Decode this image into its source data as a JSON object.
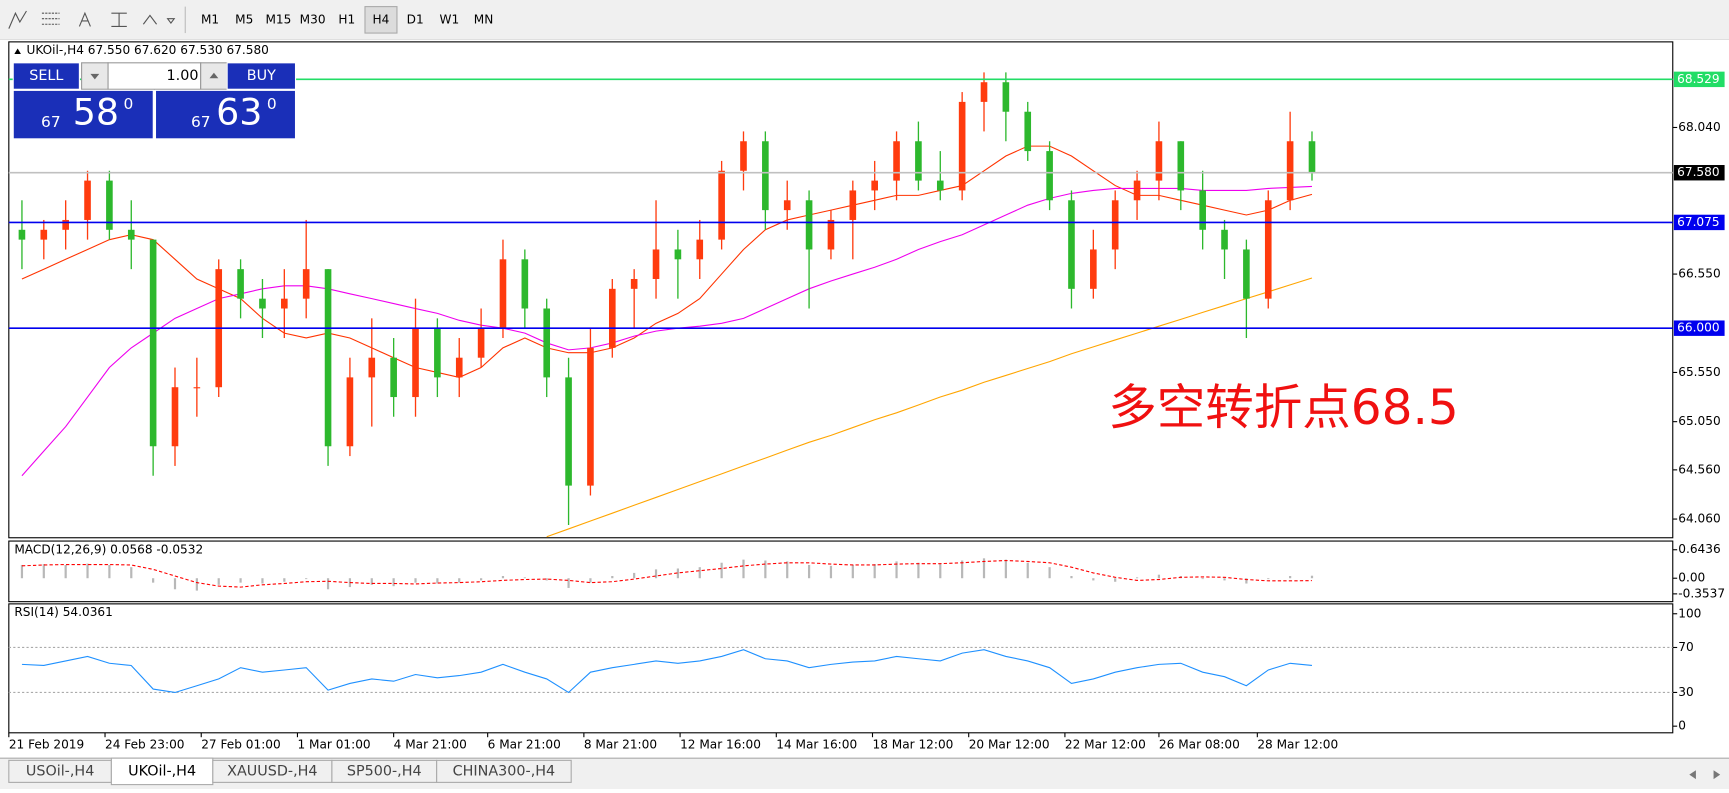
{
  "toolbar": {
    "timeframes": [
      "M1",
      "M5",
      "M15",
      "M30",
      "H1",
      "H4",
      "D1",
      "W1",
      "MN"
    ],
    "active": 5
  },
  "trade_panel": {
    "sell": "SELL",
    "buy": "BUY",
    "lots": "1.00",
    "bid": {
      "big": "67",
      "pips": "58",
      "point": "0"
    },
    "ask": {
      "big": "67",
      "pips": "63",
      "point": "0"
    }
  },
  "tabs": {
    "items": [
      "USOil-,H4",
      "UKOil-,H4",
      "XAUUSD-,H4",
      "SP500-,H4",
      "CHINA300-,H4"
    ],
    "active": 1
  },
  "chart_data": [
    {
      "type": "candlestick",
      "title": "UKOil-,H4  67.550 67.620 67.530 67.580",
      "annotation": "多空转折点68.5",
      "up_color": "#ff3b0e",
      "down_color": "#2db82d",
      "xlim": [
        -0.6,
        75.5
      ],
      "ylim": [
        63.87,
        68.91
      ],
      "xticks": [
        {
          "value": -0.6,
          "label": "21 Feb 2019"
        },
        {
          "value": 3.8,
          "label": "24 Feb 23:00"
        },
        {
          "value": 8.2,
          "label": "27 Feb 01:00"
        },
        {
          "value": 12.6,
          "label": "1 Mar 01:00"
        },
        {
          "value": 17.0,
          "label": "4 Mar 21:00"
        },
        {
          "value": 21.3,
          "label": "6 Mar 21:00"
        },
        {
          "value": 25.7,
          "label": "8 Mar 21:00"
        },
        {
          "value": 30.1,
          "label": "12 Mar 16:00"
        },
        {
          "value": 34.5,
          "label": "14 Mar 16:00"
        },
        {
          "value": 38.9,
          "label": "18 Mar 12:00"
        },
        {
          "value": 43.3,
          "label": "20 Mar 12:00"
        },
        {
          "value": 47.7,
          "label": "22 Mar 12:00"
        },
        {
          "value": 52.0,
          "label": "26 Mar 08:00"
        },
        {
          "value": 56.5,
          "label": "28 Mar 12:00"
        }
      ],
      "yticks": [
        {
          "value": 64.06,
          "label": "64.060"
        },
        {
          "value": 64.56,
          "label": "64.560"
        },
        {
          "value": 65.05,
          "label": "65.050"
        },
        {
          "value": 65.55,
          "label": "65.550"
        },
        {
          "value": 66.55,
          "label": "66.550"
        },
        {
          "value": 68.04,
          "label": "68.040"
        }
      ],
      "hlines": [
        {
          "value": 68.529,
          "label": "68.529",
          "color": "#22dd66"
        },
        {
          "value": 67.58,
          "label": "67.580",
          "color": "#c0c0c0",
          "label_color": "#000000"
        },
        {
          "value": 67.075,
          "label": "67.075",
          "color": "#0000ee"
        },
        {
          "value": 66.0,
          "label": "66.000",
          "color": "#0000ee"
        }
      ],
      "open": [
        67.0,
        66.9,
        67.0,
        67.1,
        67.5,
        67.0,
        66.9,
        64.8,
        65.4,
        65.4,
        66.6,
        66.3,
        66.2,
        66.3,
        66.6,
        64.8,
        65.5,
        65.7,
        65.3,
        66.0,
        65.5,
        65.7,
        66.0,
        66.7,
        66.2,
        65.5,
        64.4,
        65.8,
        66.4,
        66.5,
        66.8,
        66.7,
        66.9,
        67.6,
        67.9,
        67.2,
        67.3,
        66.8,
        67.1,
        67.4,
        67.5,
        67.9,
        67.5,
        67.4,
        68.3,
        68.5,
        68.2,
        67.8,
        67.3,
        66.4,
        66.8,
        67.3,
        67.5,
        67.9,
        67.4,
        67.0,
        66.8,
        66.3,
        67.3,
        67.9
      ],
      "high": [
        67.3,
        67.1,
        67.3,
        67.6,
        67.6,
        67.3,
        66.9,
        65.6,
        65.7,
        66.7,
        66.7,
        66.5,
        66.6,
        67.1,
        66.6,
        65.7,
        66.1,
        65.9,
        66.3,
        66.1,
        65.9,
        66.2,
        66.9,
        66.8,
        66.3,
        65.7,
        66.0,
        66.5,
        66.6,
        67.3,
        67.0,
        67.1,
        67.7,
        68.0,
        68.0,
        67.5,
        67.4,
        67.2,
        67.5,
        67.7,
        68.0,
        68.1,
        67.8,
        68.4,
        68.6,
        68.6,
        68.3,
        67.9,
        67.4,
        67.0,
        67.4,
        67.6,
        68.1,
        67.9,
        67.6,
        67.1,
        66.9,
        67.4,
        68.2,
        68.0
      ],
      "low": [
        66.6,
        66.7,
        66.8,
        66.9,
        66.9,
        66.6,
        64.5,
        64.6,
        65.1,
        65.3,
        66.1,
        65.9,
        65.9,
        66.1,
        64.6,
        64.7,
        65.0,
        65.1,
        65.1,
        65.3,
        65.3,
        65.6,
        65.9,
        66.0,
        65.3,
        64.0,
        64.3,
        65.7,
        66.0,
        66.3,
        66.3,
        66.5,
        66.8,
        67.4,
        67.0,
        67.0,
        66.2,
        66.7,
        66.7,
        67.2,
        67.3,
        67.4,
        67.3,
        67.3,
        68.0,
        67.9,
        67.7,
        67.2,
        66.2,
        66.3,
        66.6,
        67.1,
        67.3,
        67.2,
        66.8,
        66.5,
        65.9,
        66.2,
        67.2,
        67.5
      ],
      "close": [
        66.9,
        67.0,
        67.1,
        67.5,
        67.0,
        66.9,
        64.8,
        65.4,
        65.4,
        66.6,
        66.3,
        66.2,
        66.3,
        66.6,
        64.8,
        65.5,
        65.7,
        65.3,
        66.0,
        65.5,
        65.7,
        66.0,
        66.7,
        66.2,
        65.5,
        64.4,
        65.8,
        66.4,
        66.5,
        66.8,
        66.7,
        66.9,
        67.6,
        67.9,
        67.2,
        67.3,
        66.8,
        67.1,
        67.4,
        67.5,
        67.9,
        67.5,
        67.4,
        68.3,
        68.5,
        68.2,
        67.8,
        67.3,
        66.4,
        66.8,
        67.3,
        67.5,
        67.9,
        67.4,
        67.0,
        66.8,
        66.3,
        67.3,
        67.9,
        67.58
      ],
      "series": [
        {
          "color": "#ff3300",
          "values": [
            66.5,
            66.6,
            66.7,
            66.8,
            66.9,
            66.95,
            66.9,
            66.7,
            66.5,
            66.4,
            66.3,
            66.1,
            65.95,
            65.9,
            65.95,
            65.9,
            65.8,
            65.7,
            65.6,
            65.55,
            65.5,
            65.6,
            65.8,
            65.9,
            65.8,
            65.75,
            65.75,
            65.8,
            65.9,
            66.05,
            66.15,
            66.3,
            66.55,
            66.8,
            67.0,
            67.1,
            67.15,
            67.2,
            67.25,
            67.3,
            67.35,
            67.35,
            67.4,
            67.45,
            67.6,
            67.75,
            67.85,
            67.85,
            67.75,
            67.6,
            67.45,
            67.35,
            67.35,
            67.3,
            67.25,
            67.2,
            67.15,
            67.2,
            67.3,
            67.36
          ]
        },
        {
          "color": "#ee00ee",
          "values": [
            64.5,
            64.75,
            65.0,
            65.3,
            65.6,
            65.8,
            65.95,
            66.1,
            66.2,
            66.3,
            66.35,
            66.4,
            66.43,
            66.43,
            66.4,
            66.35,
            66.3,
            66.25,
            66.2,
            66.15,
            66.08,
            66.03,
            66.0,
            65.95,
            65.85,
            65.78,
            65.8,
            65.85,
            65.92,
            65.97,
            66.0,
            66.02,
            66.05,
            66.1,
            66.2,
            66.3,
            66.4,
            66.48,
            66.55,
            66.62,
            66.7,
            66.8,
            66.88,
            66.95,
            67.05,
            67.15,
            67.25,
            67.32,
            67.37,
            67.4,
            67.42,
            67.42,
            67.42,
            67.42,
            67.4,
            67.4,
            67.4,
            67.42,
            67.43,
            67.44
          ]
        },
        {
          "color": "#ffa500",
          "values": [
            null,
            null,
            null,
            null,
            null,
            null,
            null,
            null,
            null,
            null,
            null,
            null,
            null,
            null,
            null,
            null,
            null,
            null,
            null,
            null,
            null,
            null,
            null,
            null,
            63.88,
            63.96,
            64.04,
            64.12,
            64.2,
            64.28,
            64.36,
            64.44,
            64.52,
            64.6,
            64.68,
            64.76,
            64.84,
            64.91,
            64.99,
            65.07,
            65.14,
            65.22,
            65.3,
            65.37,
            65.45,
            65.52,
            65.59,
            65.66,
            65.74,
            65.81,
            65.88,
            65.95,
            66.02,
            66.09,
            66.16,
            66.23,
            66.3,
            66.37,
            66.44,
            66.51
          ]
        }
      ]
    },
    {
      "type": "macd",
      "title": "MACD(12,26,9) 0.0568 -0.0532",
      "ylim": [
        -0.53,
        0.84
      ],
      "yticks": [
        {
          "value": 0.6436,
          "label": "0.6436"
        },
        {
          "value": 0,
          "label": "0.00"
        },
        -0.3537
      ],
      "series": [
        {
          "color": "#b8b8b8",
          "style": "bar",
          "values": [
            0.3,
            0.32,
            0.3,
            0.33,
            0.3,
            0.25,
            -0.1,
            -0.25,
            -0.28,
            -0.15,
            -0.1,
            -0.12,
            -0.08,
            -0.02,
            -0.25,
            -0.2,
            -0.15,
            -0.18,
            -0.1,
            -0.12,
            -0.1,
            -0.05,
            0.05,
            0.02,
            -0.05,
            -0.22,
            -0.1,
            0.05,
            0.12,
            0.2,
            0.22,
            0.25,
            0.35,
            0.42,
            0.4,
            0.38,
            0.3,
            0.28,
            0.3,
            0.32,
            0.38,
            0.35,
            0.32,
            0.4,
            0.45,
            0.42,
            0.35,
            0.25,
            0.05,
            -0.05,
            -0.08,
            0.02,
            0.08,
            0.05,
            -0.02,
            -0.05,
            -0.12,
            -0.02,
            0.05,
            0.0568
          ]
        },
        {
          "color": "#ff0000",
          "style": "dotted",
          "values": [
            0.28,
            0.3,
            0.31,
            0.31,
            0.31,
            0.3,
            0.2,
            0.05,
            -0.1,
            -0.18,
            -0.2,
            -0.15,
            -0.12,
            -0.08,
            -0.07,
            -0.1,
            -0.12,
            -0.12,
            -0.13,
            -0.11,
            -0.1,
            -0.08,
            -0.05,
            -0.03,
            -0.02,
            -0.05,
            -0.1,
            -0.08,
            -0.02,
            0.05,
            0.12,
            0.17,
            0.22,
            0.28,
            0.32,
            0.35,
            0.35,
            0.32,
            0.3,
            0.3,
            0.32,
            0.33,
            0.33,
            0.35,
            0.38,
            0.4,
            0.38,
            0.35,
            0.25,
            0.12,
            0.02,
            -0.05,
            -0.03,
            0.02,
            0.03,
            0.02,
            -0.03,
            -0.06,
            -0.06,
            -0.0532
          ]
        }
      ]
    },
    {
      "type": "line",
      "title": "RSI(14) 54.0361",
      "ylim": [
        -5.9,
        108.8
      ],
      "yticks": [
        100,
        70,
        30,
        0
      ],
      "levels": [
        70,
        30
      ],
      "series": [
        {
          "color": "#1e90ff",
          "values": [
            55,
            54,
            58,
            62,
            56,
            54,
            33,
            30,
            36,
            42,
            52,
            48,
            50,
            52,
            32,
            38,
            42,
            40,
            46,
            43,
            45,
            48,
            55,
            48,
            42,
            30,
            48,
            52,
            55,
            58,
            56,
            58,
            62,
            68,
            60,
            58,
            52,
            55,
            57,
            58,
            62,
            60,
            58,
            65,
            68,
            62,
            58,
            52,
            38,
            42,
            48,
            52,
            55,
            56,
            48,
            44,
            36,
            50,
            56,
            54.0361
          ]
        }
      ]
    }
  ]
}
